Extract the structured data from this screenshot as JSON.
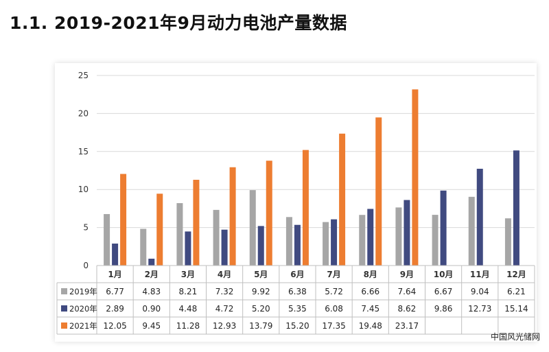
{
  "page": {
    "title": "1.1. 2019-2021年9月动力电池产量数据",
    "watermark": "中国风光储网"
  },
  "colors": {
    "series_2019": "#a6a6a6",
    "series_2020": "#404a80",
    "series_2021": "#ed7d31",
    "grid": "#d9d9d9",
    "axis": "#bfbfbf"
  },
  "chart_data": {
    "type": "bar",
    "title": "",
    "xlabel": "",
    "ylabel": "",
    "ylim": [
      0,
      25
    ],
    "yticks": [
      0,
      5,
      10,
      15,
      20,
      25
    ],
    "grid": true,
    "legend": "data-table",
    "categories": [
      "1月",
      "2月",
      "3月",
      "4月",
      "5月",
      "6月",
      "7月",
      "8月",
      "9月",
      "10月",
      "11月",
      "12月"
    ],
    "series": [
      {
        "name": "2019年",
        "values": [
          6.77,
          4.83,
          8.21,
          7.32,
          9.92,
          6.38,
          5.72,
          6.66,
          7.64,
          6.67,
          9.04,
          6.21
        ],
        "labels": [
          "6.77",
          "4.83",
          "8.21",
          "7.32",
          "9.92",
          "6.38",
          "5.72",
          "6.66",
          "7.64",
          "6.67",
          "9.04",
          "6.21"
        ]
      },
      {
        "name": "2020年",
        "values": [
          2.89,
          0.9,
          4.48,
          4.72,
          5.2,
          5.35,
          6.08,
          7.45,
          8.62,
          9.86,
          12.73,
          15.14
        ],
        "labels": [
          "2.89",
          "0.90",
          "4.48",
          "4.72",
          "5.20",
          "5.35",
          "6.08",
          "7.45",
          "8.62",
          "9.86",
          "12.73",
          "15.14"
        ]
      },
      {
        "name": "2021年",
        "values": [
          12.05,
          9.45,
          11.28,
          12.93,
          13.79,
          15.2,
          17.35,
          19.48,
          23.17,
          null,
          null,
          null
        ],
        "labels": [
          "12.05",
          "9.45",
          "11.28",
          "12.93",
          "13.79",
          "15.20",
          "17.35",
          "19.48",
          "23.17",
          "",
          "",
          ""
        ]
      }
    ]
  }
}
